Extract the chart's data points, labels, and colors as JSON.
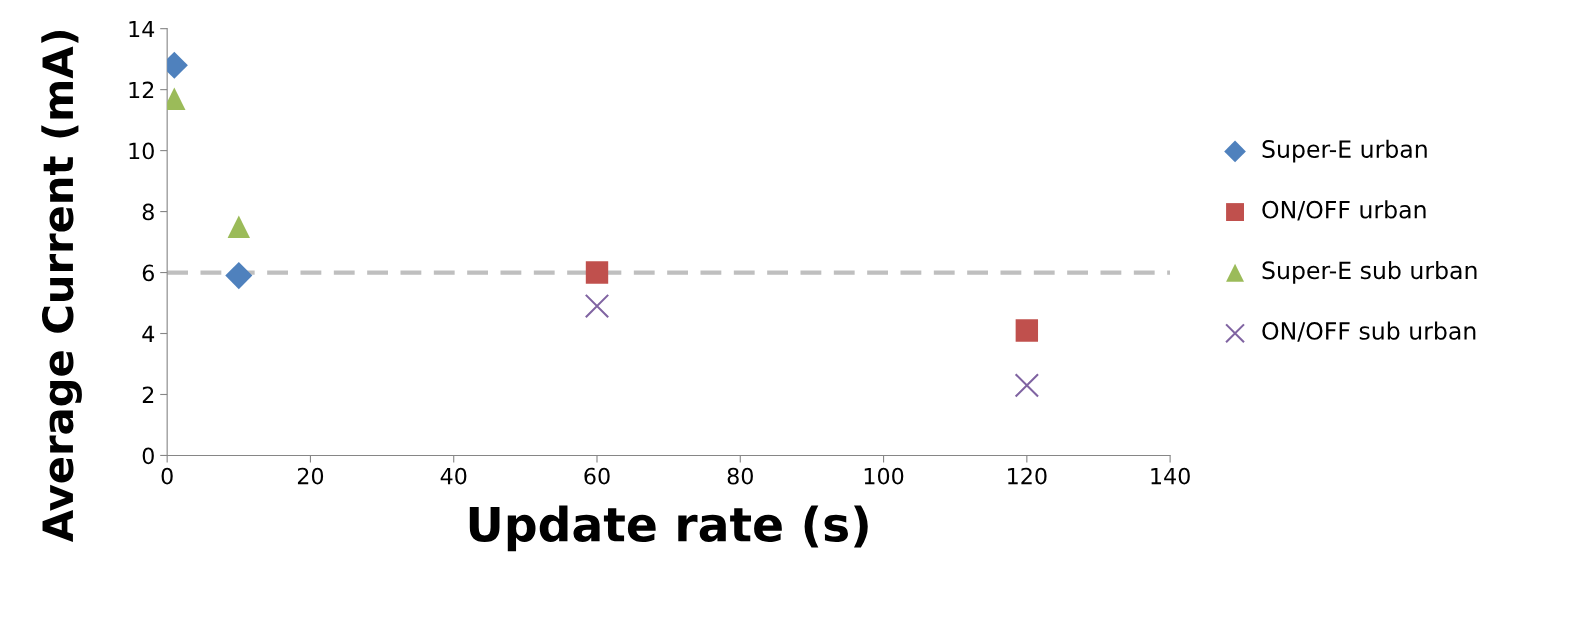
{
  "chart_data": {
    "type": "scatter",
    "xlabel": "Update rate (s)",
    "ylabel": "Average Current (mA)",
    "xlim": [
      0,
      140
    ],
    "xticks": [
      0,
      20,
      40,
      60,
      80,
      100,
      120,
      140
    ],
    "ylim": [
      0,
      14
    ],
    "yticks": [
      0,
      2,
      4,
      6,
      8,
      10,
      12,
      14
    ],
    "grid": false,
    "legend": "right",
    "ref_lines": [
      {
        "axis": "y",
        "value": 6,
        "color": "#bfbfbf",
        "line_style": "dashed"
      }
    ],
    "series": [
      {
        "name": "Super-E urban",
        "color": "#4f81bd",
        "marker": "diamond",
        "x": [
          1,
          10
        ],
        "values": [
          12.8,
          5.9
        ]
      },
      {
        "name": "ON/OFF urban",
        "color": "#c0504d",
        "marker": "square",
        "x": [
          60,
          120
        ],
        "values": [
          6.0,
          4.1
        ]
      },
      {
        "name": "Super-E sub urban",
        "color": "#9bbb59",
        "marker": "triangle",
        "x": [
          1,
          10
        ],
        "values": [
          11.7,
          7.5
        ]
      },
      {
        "name": "ON/OFF sub urban",
        "color": "#8064a2",
        "marker": "cross",
        "x": [
          60,
          120
        ],
        "values": [
          4.9,
          2.3
        ]
      }
    ]
  }
}
